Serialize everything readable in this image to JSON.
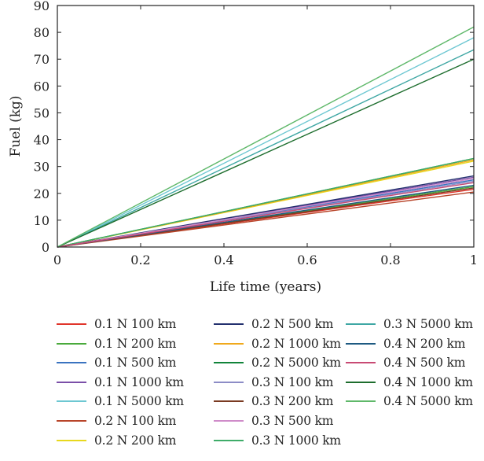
{
  "chart_data": {
    "type": "line",
    "title": "",
    "xlabel": "Life time (years)",
    "ylabel": "Fuel (kg)",
    "xlim": [
      0,
      1
    ],
    "ylim": [
      0,
      90
    ],
    "xticks": [
      "0",
      "0.2",
      "0.4",
      "0.6",
      "0.8",
      "1"
    ],
    "yticks": [
      "0",
      "10",
      "20",
      "30",
      "40",
      "50",
      "60",
      "70",
      "80",
      "90"
    ],
    "grid": false,
    "legend_position": "below",
    "series": [
      {
        "name": "0.1 N 100 km",
        "color": "#e0352b",
        "x": [
          0,
          1
        ],
        "y": [
          0,
          21.5
        ]
      },
      {
        "name": "0.1 N 200 km",
        "color": "#4aaa3c",
        "x": [
          0,
          1
        ],
        "y": [
          0,
          22.5
        ]
      },
      {
        "name": "0.1 N 500 km",
        "color": "#3a73c0",
        "x": [
          0,
          1
        ],
        "y": [
          0,
          25.0
        ]
      },
      {
        "name": "0.1 N 1000 km",
        "color": "#7b4fa8",
        "x": [
          0,
          1
        ],
        "y": [
          0,
          26.0
        ]
      },
      {
        "name": "0.1 N 5000 km",
        "color": "#6dc7d2",
        "x": [
          0,
          1
        ],
        "y": [
          0,
          78.0
        ]
      },
      {
        "name": "0.2 N 100 km",
        "color": "#b8452a",
        "x": [
          0,
          1
        ],
        "y": [
          0,
          20.5
        ]
      },
      {
        "name": "0.2 N 200 km",
        "color": "#e8d81e",
        "x": [
          0,
          1
        ],
        "y": [
          0,
          32.0
        ]
      },
      {
        "name": "0.2 N 500 km",
        "color": "#23306e",
        "x": [
          0,
          1
        ],
        "y": [
          0,
          26.5
        ]
      },
      {
        "name": "0.2 N 1000 km",
        "color": "#f0a91c",
        "x": [
          0,
          1
        ],
        "y": [
          0,
          32.5
        ]
      },
      {
        "name": "0.2 N 5000 km",
        "color": "#11843a",
        "x": [
          0,
          1
        ],
        "y": [
          0,
          33.0
        ]
      },
      {
        "name": "0.3 N 100 km",
        "color": "#8c8cc6",
        "x": [
          0,
          1
        ],
        "y": [
          0,
          24.5
        ]
      },
      {
        "name": "0.3 N 200 km",
        "color": "#7a3a22",
        "x": [
          0,
          1
        ],
        "y": [
          0,
          22.0
        ]
      },
      {
        "name": "0.3 N 500 km",
        "color": "#cf8cc9",
        "x": [
          0,
          1
        ],
        "y": [
          0,
          25.5
        ]
      },
      {
        "name": "0.3 N 1000 km",
        "color": "#3eac69",
        "x": [
          0,
          1
        ],
        "y": [
          0,
          33.0
        ]
      },
      {
        "name": "0.3 N 5000 km",
        "color": "#3fa7a4",
        "x": [
          0,
          1
        ],
        "y": [
          0,
          73.5
        ]
      },
      {
        "name": "0.4 N 200 km",
        "color": "#1e5a82",
        "x": [
          0,
          1
        ],
        "y": [
          0,
          23.0
        ]
      },
      {
        "name": "0.4 N 500 km",
        "color": "#c84a74",
        "x": [
          0,
          1
        ],
        "y": [
          0,
          24.0
        ]
      },
      {
        "name": "0.4 N 1000 km",
        "color": "#1d6d2d",
        "x": [
          0,
          1
        ],
        "y": [
          0,
          70.0
        ]
      },
      {
        "name": "0.4 N 5000 km",
        "color": "#5fb86a",
        "x": [
          0,
          1
        ],
        "y": [
          0,
          82.0
        ]
      }
    ]
  }
}
